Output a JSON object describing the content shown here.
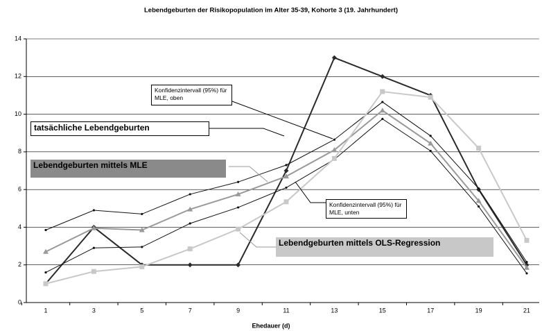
{
  "chart_data": {
    "type": "line",
    "title": "Lebendgeburten der Risikopopulation im Alter 35-39, Kohorte 3 (19. Jahrhundert)",
    "x_label": "Ehedauer (d)",
    "categories": [
      "1",
      "3",
      "5",
      "7",
      "9",
      "11",
      "13",
      "15",
      "17",
      "19",
      "21"
    ],
    "ylim": [
      0,
      14
    ],
    "yticks": [
      0,
      2,
      4,
      6,
      8,
      10,
      12,
      14
    ],
    "grid": true,
    "series": [
      {
        "name": "tatsächliche Lebendgeburten",
        "color": "#2a2a2a",
        "marker": "diamond",
        "values": [
          1.0,
          4.0,
          2.0,
          2.0,
          2.0,
          7.0,
          13.0,
          12.0,
          11.0,
          6.0,
          2.0
        ]
      },
      {
        "name": "Konfidenzintervall (95%) für MLE, oben",
        "color": "#111111",
        "marker": "dot",
        "values": [
          3.85,
          4.9,
          4.7,
          5.75,
          6.4,
          7.3,
          8.65,
          10.65,
          8.85,
          6.05,
          2.15
        ]
      },
      {
        "name": "Lebendgeburten mittels MLE",
        "color": "#999999",
        "marker": "triangle",
        "values": [
          2.7,
          3.95,
          3.85,
          4.95,
          5.75,
          6.7,
          8.1,
          10.2,
          8.45,
          5.4,
          1.85
        ]
      },
      {
        "name": "Konfidenzintervall (95%) für MLE, unten",
        "color": "#111111",
        "marker": "dot",
        "values": [
          1.6,
          2.9,
          2.95,
          4.2,
          5.05,
          6.1,
          7.6,
          9.75,
          8.05,
          5.1,
          1.55
        ]
      },
      {
        "name": "Lebendgeburten mittels OLS-Regression",
        "color": "#c8c8c8",
        "marker": "square",
        "values": [
          1.0,
          1.65,
          1.9,
          2.85,
          3.9,
          5.35,
          7.65,
          11.2,
          10.9,
          8.2,
          3.3
        ]
      }
    ]
  }
}
